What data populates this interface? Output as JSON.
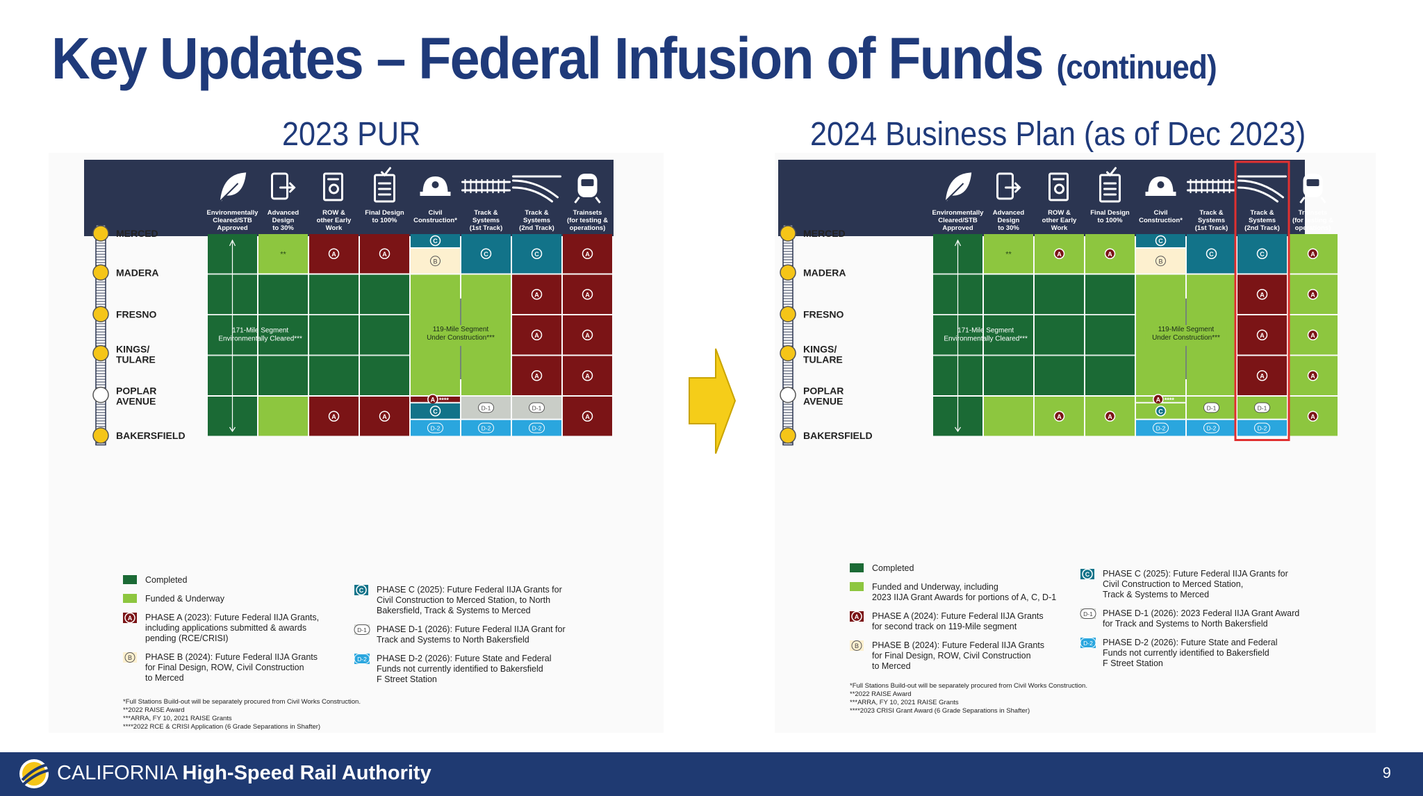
{
  "slide": {
    "title_main": "Key Updates – Federal Infusion of Funds",
    "title_suffix": "(continued)",
    "page_number": "9"
  },
  "footer": {
    "brand_part1": "CALIFORNIA ",
    "brand_part2": "High-Speed Rail Authority"
  },
  "columns": [
    {
      "icon": "leaf-icon",
      "label": [
        "Environmentally",
        "Cleared/STB",
        "Approved"
      ]
    },
    {
      "icon": "document-arrow-icon",
      "label": [
        "Advanced",
        "Design",
        "to 30%"
      ]
    },
    {
      "icon": "certificate-icon",
      "label": [
        "ROW &",
        "other Early",
        "Work"
      ]
    },
    {
      "icon": "checklist-icon",
      "label": [
        "Final Design",
        "to 100%"
      ]
    },
    {
      "icon": "hardhat-icon",
      "label": [
        "Civil",
        "Construction*"
      ]
    },
    {
      "icon": "track-icon",
      "label": [
        "Track &",
        "Systems",
        "(1st Track)"
      ]
    },
    {
      "icon": "track-curve-icon",
      "label": [
        "Track &",
        "Systems",
        "(2nd Track)"
      ]
    },
    {
      "icon": "train-icon",
      "label": [
        "Trainsets",
        "(for testing &",
        "operations)"
      ]
    }
  ],
  "stations": [
    "MERCED",
    "MADERA",
    "FRESNO",
    "KINGS/\nTULARE",
    "POPLAR\nAVENUE",
    "BAKERSFIELD"
  ],
  "segment_labels": {
    "seg171": [
      "171-Mile Segment",
      "Environmentally Cleared***"
    ],
    "seg119": [
      "119-Mile Segment",
      "Under Construction***"
    ],
    "stars_ok": "**",
    "stars4": "****"
  },
  "colors": {
    "completed": "#1b6a35",
    "funded": "#8dc63f",
    "phase_a": "#7b1416",
    "phase_b": "#fdf0cf",
    "phase_c": "#127389",
    "phase_d1": "#c9cdc7",
    "phase_d2": "#2aa6de",
    "header": "#2b3551",
    "title": "#1f3a7a",
    "station_dot": "#f5c518",
    "highlight_box": "#e03030",
    "arrow": "#f5cd19"
  },
  "panels": [
    {
      "subtitle": "2023 PUR",
      "legend": [
        {
          "key": "completed",
          "text": [
            "Completed"
          ]
        },
        {
          "key": "funded",
          "text": [
            "Funded & Underway"
          ]
        },
        {
          "key": "A",
          "text": [
            "PHASE A (2023): Future Federal IIJA Grants,",
            "including applications submitted & awards",
            "pending (RCE/CRISI)"
          ]
        },
        {
          "key": "B",
          "text": [
            "PHASE B (2024): Future Federal IIJA Grants",
            "for Final Design, ROW, Civil Construction",
            "to Merced"
          ]
        },
        {
          "key": "C",
          "text": [
            "PHASE C (2025): Future Federal IIJA Grants for",
            "Civil Construction to Merced Station, to North",
            "Bakersfield, Track & Systems to Merced"
          ]
        },
        {
          "key": "D-1",
          "text": [
            "PHASE D-1 (2026): Future Federal IIJA Grant for",
            "Track and Systems to North Bakersfield"
          ]
        },
        {
          "key": "D-2",
          "text": [
            "PHASE D-2 (2026): Future State and Federal",
            "Funds not currently identified to Bakersfield",
            "F Street Station"
          ]
        }
      ],
      "footnotes": [
        "*Full Stations Build-out will be separately procured from Civil Works Construction.",
        "**2022 RAISE Award",
        "***ARRA, FY 10, 2021 RAISE Grants",
        "****2022 RCE & CRISI Application (6 Grade Separations in Shafter)"
      ]
    },
    {
      "subtitle": "2024 Business Plan (as of Dec 2023)",
      "legend": [
        {
          "key": "completed",
          "text": [
            "Completed"
          ]
        },
        {
          "key": "funded",
          "text": [
            "Funded and Underway, including",
            "2023 IIJA Grant Awards for portions of A, C, D-1"
          ]
        },
        {
          "key": "A",
          "text": [
            "PHASE A (2024): Future Federal IIJA Grants",
            "for second track on 119-Mile segment"
          ]
        },
        {
          "key": "B",
          "text": [
            "PHASE B (2024): Future Federal IIJA Grants",
            "for Final Design, ROW, Civil Construction",
            "to Merced"
          ]
        },
        {
          "key": "C",
          "text": [
            "PHASE C (2025): Future Federal IIJA Grants for",
            "Civil Construction to Merced Station,",
            "Track & Systems to Merced"
          ]
        },
        {
          "key": "D-1",
          "text": [
            "PHASE D-1 (2026): 2023 Federal IIJA Grant Award",
            "for Track and Systems to North Bakersfield"
          ]
        },
        {
          "key": "D-2",
          "text": [
            "PHASE D-2 (2026): Future State and Federal",
            "Funds not currently identified to Bakersfield",
            "F Street Station"
          ]
        }
      ],
      "footnotes": [
        "*Full Stations Build-out will be separately procured from Civil Works Construction.",
        "**2022 RAISE Award",
        "***ARRA, FY 10, 2021 RAISE Grants",
        "****2023 CRISI Grant Award (6 Grade Separations in Shafter)"
      ]
    }
  ]
}
